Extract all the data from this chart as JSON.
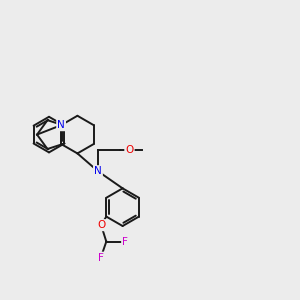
{
  "bg_color": "#ececec",
  "bond_color": "#1a1a1a",
  "N_color": "#0000ee",
  "O_color": "#ee0000",
  "F_color": "#cc00cc",
  "lw": 1.4,
  "figsize": [
    3.0,
    3.0
  ],
  "dpi": 100,
  "fs": 7.5,
  "xlim": [
    0.2,
    8.8
  ],
  "ylim": [
    1.0,
    8.2
  ]
}
